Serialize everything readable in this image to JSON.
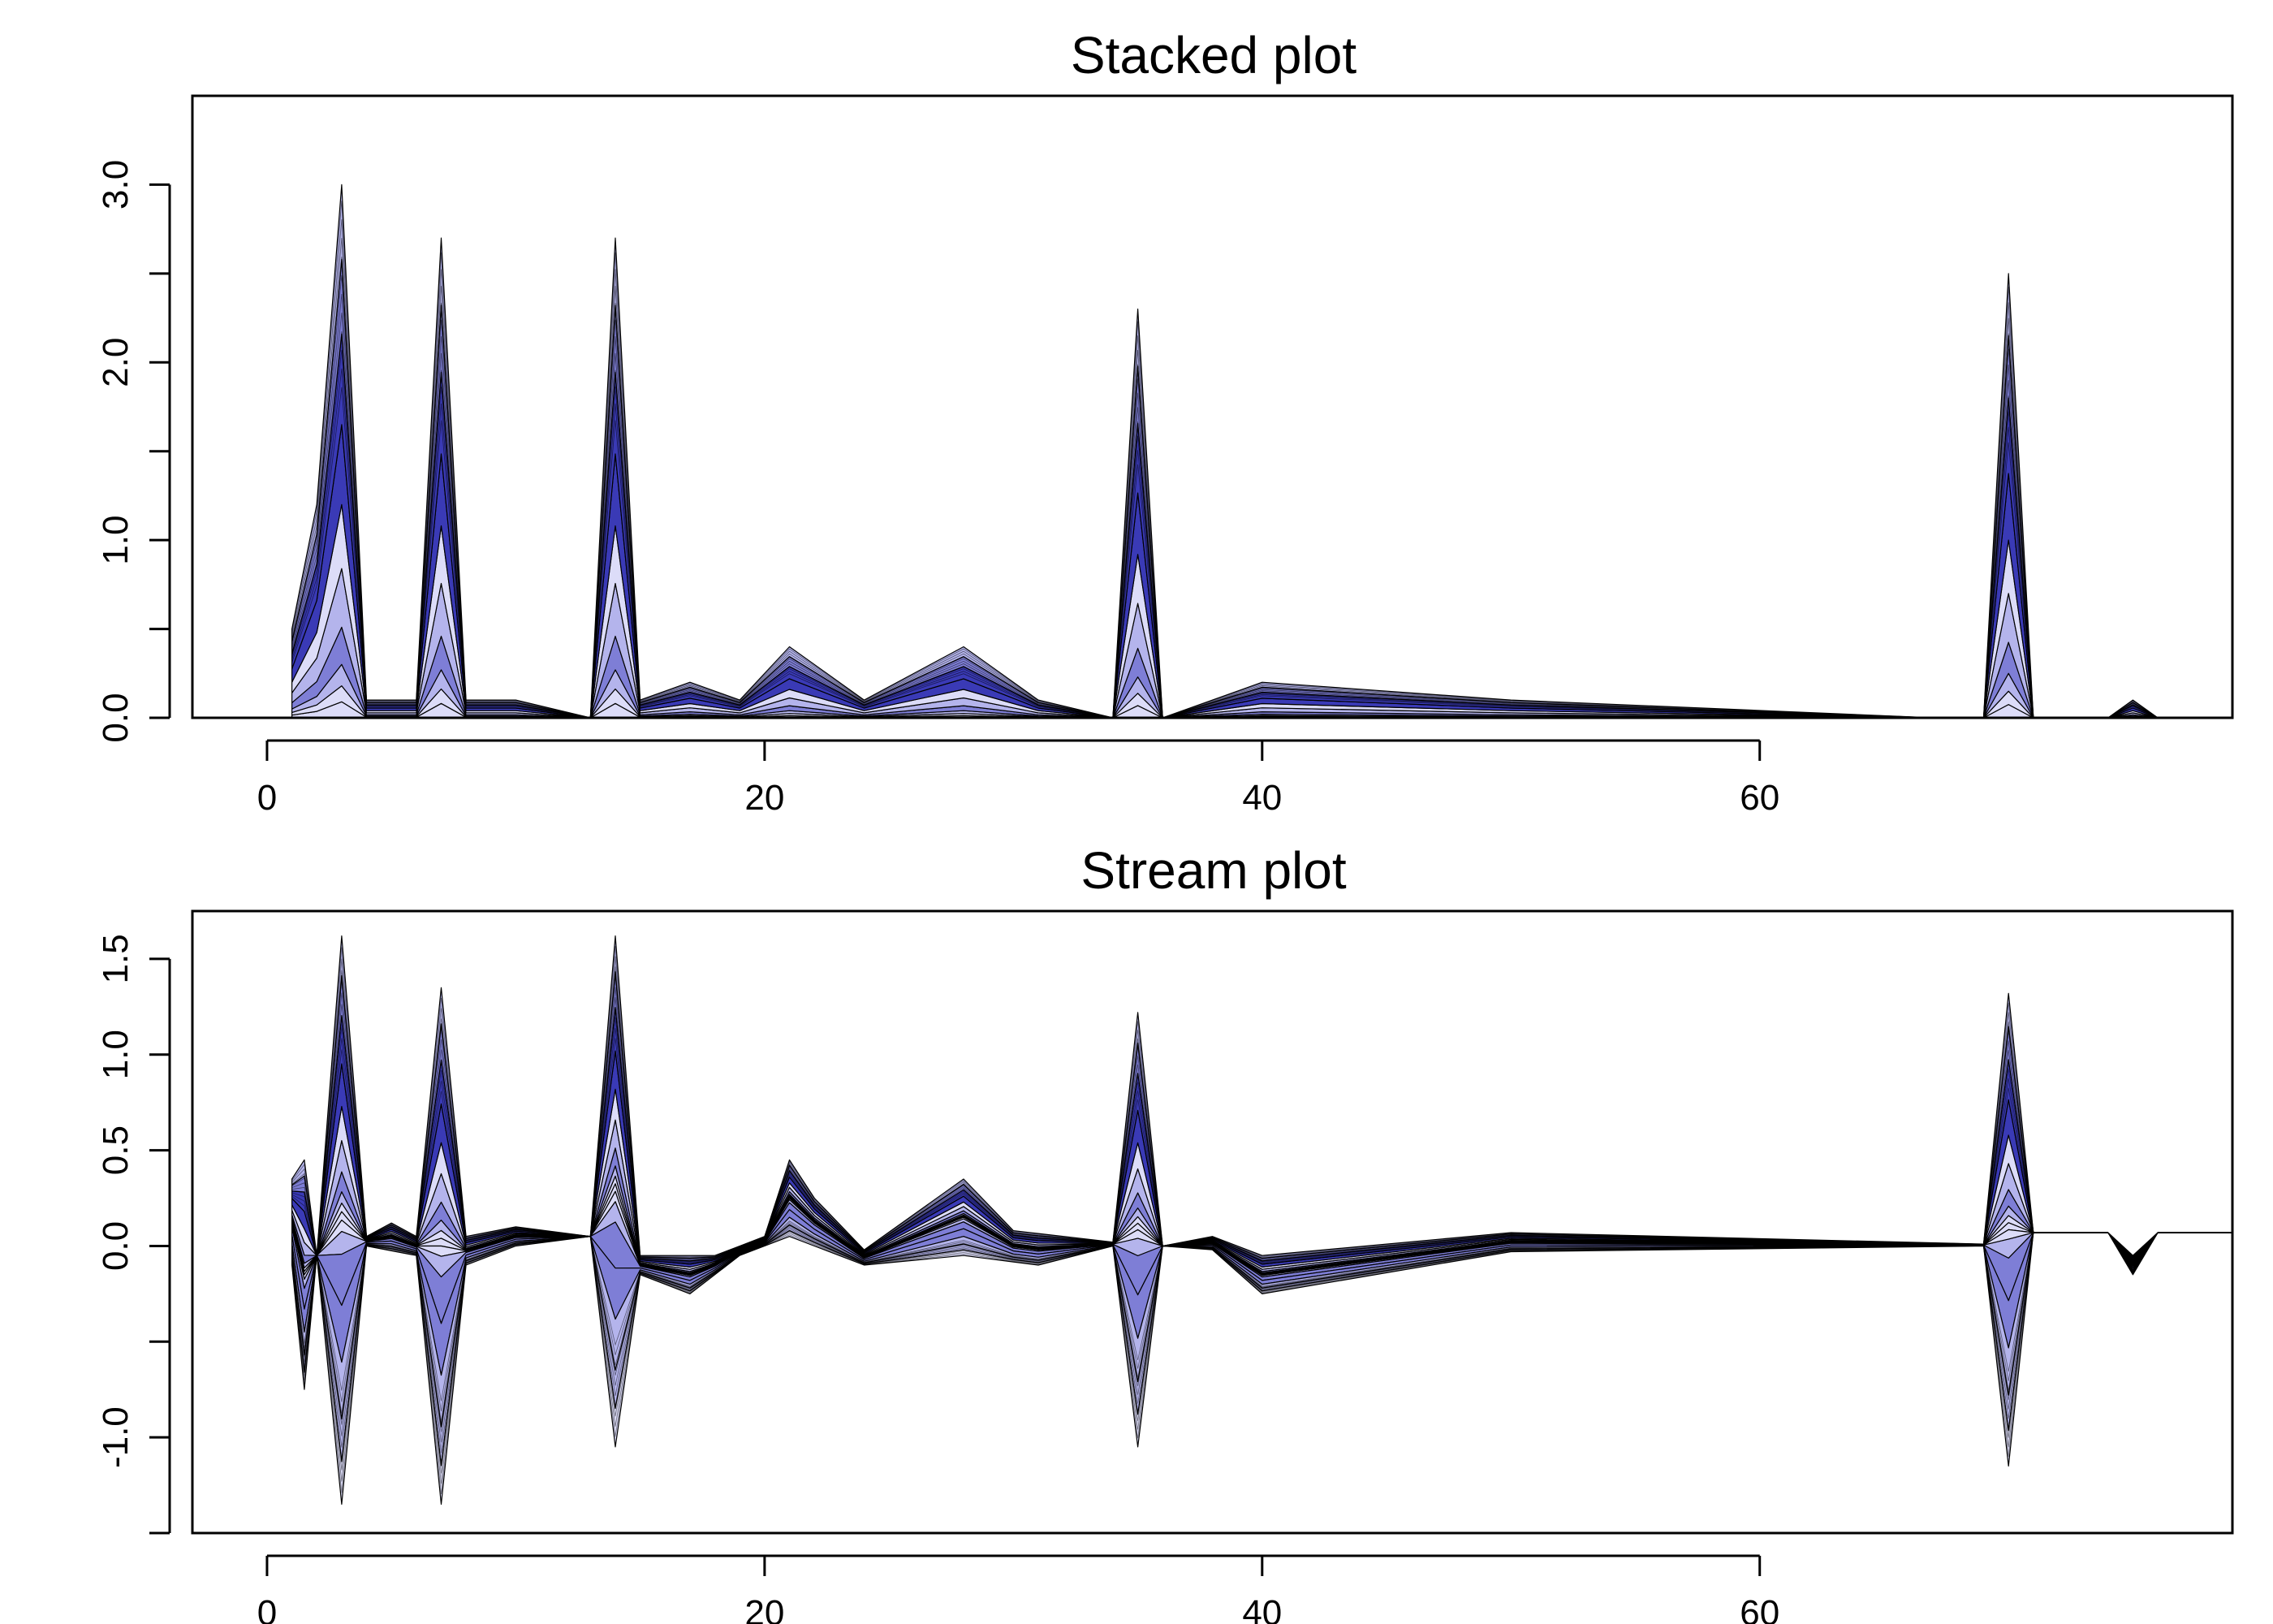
{
  "chart_data": [
    {
      "type": "area",
      "title": "Stacked plot",
      "xlabel": "",
      "ylabel": "",
      "xlim": [
        -3,
        79
      ],
      "ylim": [
        0,
        3.5
      ],
      "x_ticks": [
        "0",
        "20",
        "40",
        "60"
      ],
      "y_ticks": [
        "0.0",
        "",
        "1.0",
        "",
        "2.0",
        "",
        "3.0"
      ],
      "grid": false,
      "legend": "none",
      "colors": {
        "light": "#dcdcf8",
        "mid": "#b4b4ec",
        "medium": "#7e7ed6",
        "dark": "#3a3ab6",
        "line": "#000000"
      },
      "series": [
        {
          "values": [
            [
              1,
              0.5
            ],
            [
              2,
              1.2
            ],
            [
              3,
              3.0
            ],
            [
              4,
              0.1
            ],
            [
              6,
              0.1
            ],
            [
              7,
              2.7
            ],
            [
              8,
              0.1
            ],
            [
              10,
              0.1
            ],
            [
              13,
              0.0
            ],
            [
              14,
              2.7
            ],
            [
              15,
              0.1
            ],
            [
              17,
              0.2
            ],
            [
              19,
              0.1
            ],
            [
              21,
              0.4
            ],
            [
              24,
              0.1
            ],
            [
              28,
              0.4
            ],
            [
              31,
              0.1
            ],
            [
              34,
              0.0
            ],
            [
              35,
              2.3
            ],
            [
              36,
              0.0
            ],
            [
              40,
              0.2
            ],
            [
              50,
              0.1
            ],
            [
              67,
              0.0
            ],
            [
              69,
              0.0
            ],
            [
              70,
              2.5
            ],
            [
              71,
              0.0
            ],
            [
              74,
              0.0
            ],
            [
              75,
              0.1
            ],
            [
              76,
              0.0
            ]
          ]
        }
      ]
    },
    {
      "type": "area",
      "title": "Stream plot",
      "xlabel": "",
      "ylabel": "",
      "xlim": [
        -3,
        79
      ],
      "ylim": [
        -1.5,
        1.75
      ],
      "x_ticks": [
        "0",
        "20",
        "40",
        "60"
      ],
      "y_ticks": [
        "",
        "-1.0",
        "",
        "0.0",
        "0.5",
        "1.0",
        "1.5"
      ],
      "grid": false,
      "legend": "none",
      "colors": {
        "light": "#dcdcf8",
        "mid": "#b4b4ec",
        "medium": "#7e7ed6",
        "dark": "#3a3ab6",
        "line": "#000000"
      },
      "series": [
        {
          "values": [
            [
              1,
              0.35
            ],
            [
              1.5,
              0.45
            ],
            [
              2,
              -0.05
            ],
            [
              3,
              1.62
            ],
            [
              4,
              0.05
            ],
            [
              5,
              0.12
            ],
            [
              6,
              0.05
            ],
            [
              7,
              1.35
            ],
            [
              8,
              0.05
            ],
            [
              10,
              0.1
            ],
            [
              13,
              0.05
            ],
            [
              14,
              1.62
            ],
            [
              15,
              -0.05
            ],
            [
              16,
              -0.05
            ],
            [
              18,
              -0.05
            ],
            [
              20,
              0.05
            ],
            [
              21,
              0.45
            ],
            [
              22,
              0.25
            ],
            [
              24,
              -0.02
            ],
            [
              28,
              0.35
            ],
            [
              30,
              0.08
            ],
            [
              34,
              0.02
            ],
            [
              35,
              1.22
            ],
            [
              36,
              0.0
            ],
            [
              38,
              0.05
            ],
            [
              40,
              -0.05
            ],
            [
              50,
              0.07
            ],
            [
              69,
              0.01
            ],
            [
              70,
              1.32
            ],
            [
              71,
              0.07
            ],
            [
              74,
              0.07
            ],
            [
              75,
              -0.05
            ],
            [
              76,
              0.07
            ],
            [
              79,
              0.07
            ]
          ]
        },
        {
          "values": [
            [
              1,
              -0.1
            ],
            [
              1.5,
              -0.75
            ],
            [
              2,
              -0.05
            ],
            [
              3,
              -1.35
            ],
            [
              4,
              0.0
            ],
            [
              6,
              -0.05
            ],
            [
              7,
              -1.35
            ],
            [
              8,
              -0.1
            ],
            [
              10,
              0.0
            ],
            [
              13,
              0.05
            ],
            [
              14,
              -1.05
            ],
            [
              15,
              -0.15
            ],
            [
              17,
              -0.25
            ],
            [
              19,
              -0.05
            ],
            [
              21,
              0.05
            ],
            [
              24,
              -0.1
            ],
            [
              28,
              -0.05
            ],
            [
              31,
              -0.1
            ],
            [
              34,
              0.0
            ],
            [
              35,
              -1.05
            ],
            [
              36,
              0.0
            ],
            [
              38,
              -0.02
            ],
            [
              40,
              -0.25
            ],
            [
              50,
              -0.03
            ],
            [
              69,
              0.0
            ],
            [
              70,
              -1.15
            ],
            [
              71,
              0.07
            ],
            [
              74,
              0.07
            ],
            [
              75,
              -0.15
            ],
            [
              76,
              0.07
            ],
            [
              79,
              0.07
            ]
          ]
        }
      ]
    }
  ]
}
